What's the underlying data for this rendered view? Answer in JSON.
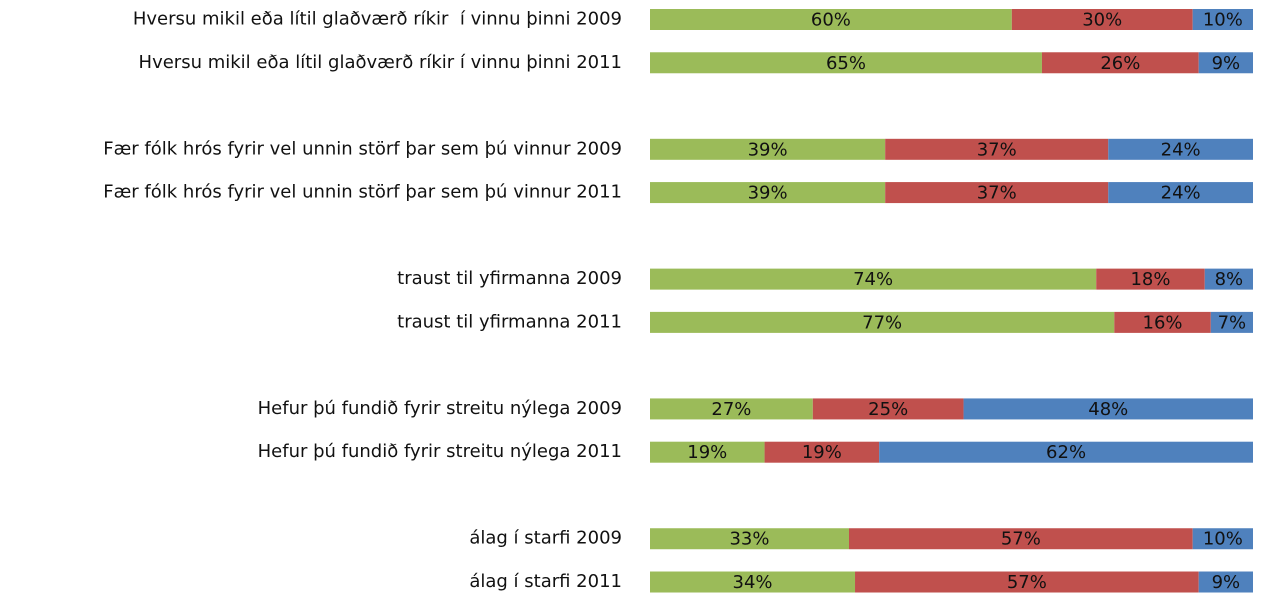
{
  "chart_data": {
    "type": "stacked-barh",
    "categories": [
      "Hversu mikil eða lítil glaðværð ríkir  í vinnu þinni 2009",
      "Hversu mikil eða lítil glaðværð ríkir í vinnu þinni 2011",
      null,
      "Fær fólk hrós fyrir vel unnin störf þar sem þú vinnur 2009",
      "Fær fólk hrós fyrir vel unnin störf þar sem þú vinnur 2011",
      null,
      "traust til yfirmanna 2009",
      "traust til yfirmanna 2011",
      null,
      "Hefur þú fundið fyrir streitu nýlega 2009",
      "Hefur þú fundið fyrir streitu nýlega 2011",
      null,
      "álag í starfi 2009",
      "álag í starfi 2011"
    ],
    "xlim": [
      0,
      100
    ],
    "series": [
      {
        "color": "#9bbb59",
        "values": [
          60,
          65,
          null,
          39,
          39,
          null,
          74,
          77,
          null,
          27,
          19,
          null,
          33,
          34
        ],
        "value_labels": [
          "60%",
          "65%",
          null,
          "39%",
          "39%",
          null,
          "74%",
          "77%",
          null,
          "27%",
          "19%",
          null,
          "33%",
          "34%"
        ]
      },
      {
        "color": "#c0504d",
        "values": [
          30,
          26,
          null,
          37,
          37,
          null,
          18,
          16,
          null,
          25,
          19,
          null,
          57,
          57
        ],
        "value_labels": [
          "30%",
          "26%",
          null,
          "37%",
          "37%",
          null,
          "18%",
          "16%",
          null,
          "25%",
          "19%",
          null,
          "57%",
          "57%"
        ]
      },
      {
        "color": "#4f81bd",
        "values": [
          10,
          9,
          null,
          24,
          24,
          null,
          8,
          7,
          null,
          48,
          62,
          null,
          10,
          9
        ],
        "value_labels": [
          "10%",
          "9%",
          null,
          "24%",
          "24%",
          null,
          "8%",
          "7%",
          null,
          "48%",
          "62%",
          null,
          "10%",
          "9%"
        ]
      }
    ]
  }
}
